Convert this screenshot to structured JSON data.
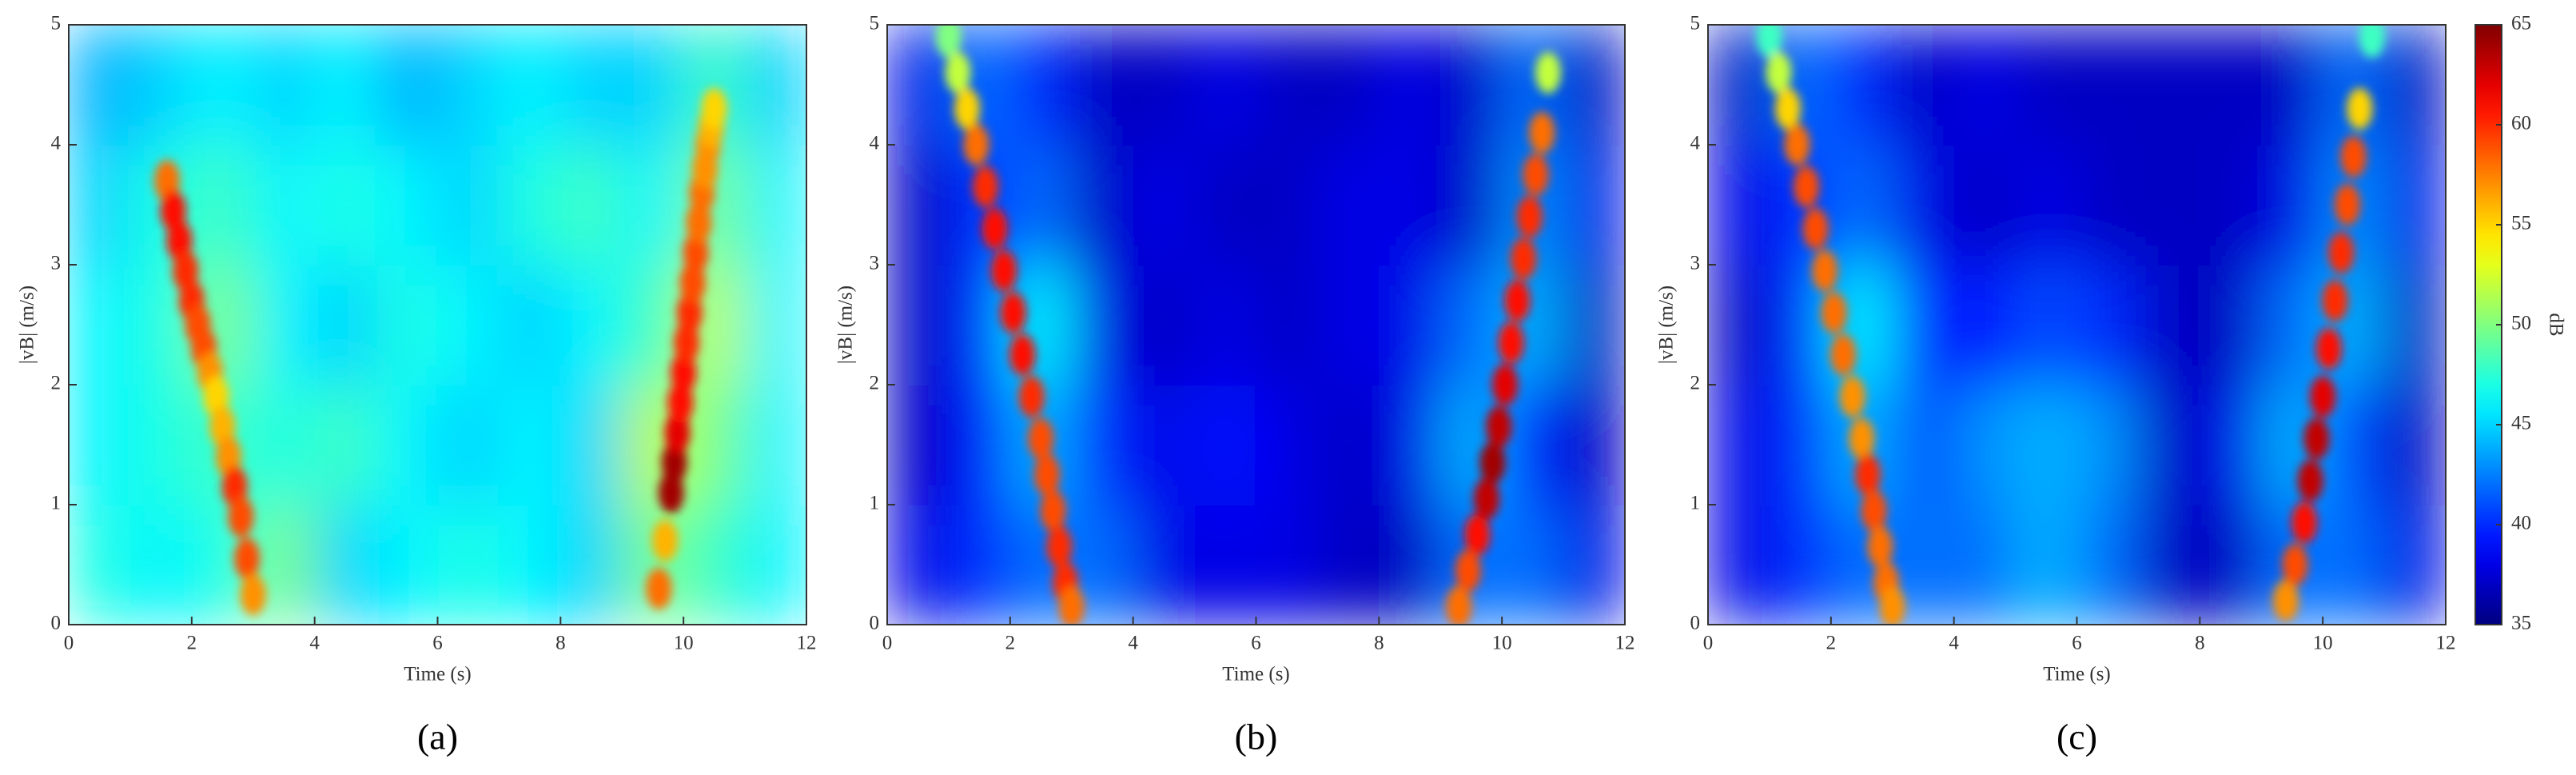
{
  "chart_data": [
    {
      "type": "heatmap",
      "xlabel": "Time (s)",
      "ylabel": "|vB| (m/s)",
      "caption": "(a)",
      "xlim": [
        0,
        12
      ],
      "xticks": [
        0,
        2,
        4,
        6,
        8,
        10,
        12
      ],
      "ylim": [
        0,
        5
      ],
      "yticks": [
        0,
        1,
        2,
        3,
        4,
        5
      ],
      "clim": [
        35,
        65
      ],
      "z": [
        [
          47,
          46,
          47,
          50,
          45,
          46,
          47,
          46,
          45,
          50,
          48,
          46
        ],
        [
          46,
          47,
          48,
          47,
          48,
          46,
          45,
          46,
          45,
          52,
          50,
          46
        ],
        [
          46,
          47,
          50,
          46,
          45,
          47,
          46,
          45,
          46,
          48,
          52,
          46
        ],
        [
          45,
          47,
          48,
          46,
          47,
          46,
          45,
          47,
          48,
          46,
          50,
          46
        ],
        [
          44,
          45,
          46,
          45,
          46,
          44,
          45,
          46,
          45,
          45,
          48,
          45
        ]
      ],
      "ridges": [
        {
          "x": [
            1.6,
            1.7,
            1.8,
            1.9,
            2.0,
            2.1,
            2.2,
            2.3,
            2.4,
            2.5,
            2.6,
            2.7,
            2.8,
            2.9,
            3.0
          ],
          "y": [
            3.7,
            3.45,
            3.2,
            2.95,
            2.7,
            2.5,
            2.3,
            2.1,
            1.9,
            1.65,
            1.4,
            1.15,
            0.9,
            0.55,
            0.25
          ],
          "values": [
            58,
            61,
            61,
            60,
            60,
            59,
            59,
            57,
            55,
            56,
            57,
            60,
            59,
            59,
            57
          ]
        },
        {
          "x": [
            9.6,
            9.7,
            9.8,
            9.85,
            9.9,
            9.95,
            10.0,
            10.05,
            10.1,
            10.15,
            10.2,
            10.25,
            10.3,
            10.35,
            10.4,
            10.45,
            10.5
          ],
          "y": [
            0.3,
            0.7,
            1.1,
            1.35,
            1.6,
            1.85,
            2.1,
            2.35,
            2.6,
            2.85,
            3.1,
            3.35,
            3.6,
            3.8,
            4.0,
            4.15,
            4.3
          ],
          "values": [
            58,
            56,
            64,
            64,
            62,
            61,
            61,
            60,
            60,
            59,
            59,
            58,
            58,
            57,
            57,
            56,
            55
          ]
        }
      ]
    },
    {
      "type": "heatmap",
      "xlabel": "Time (s)",
      "ylabel": "|vB| (m/s)",
      "caption": "(b)",
      "xlim": [
        0,
        12
      ],
      "xticks": [
        0,
        2,
        4,
        6,
        8,
        10,
        12
      ],
      "ylim": [
        0,
        5
      ],
      "yticks": [
        0,
        1,
        2,
        3,
        4,
        5
      ],
      "clim": [
        35,
        65
      ],
      "z": [
        [
          38,
          40,
          42,
          42,
          38,
          38,
          38,
          37,
          37,
          42,
          42,
          38
        ],
        [
          37,
          39,
          44,
          40,
          38,
          39,
          38,
          37,
          38,
          44,
          40,
          37
        ],
        [
          37,
          40,
          46,
          38,
          37,
          38,
          37,
          38,
          38,
          42,
          44,
          37
        ],
        [
          37,
          40,
          42,
          37,
          38,
          37,
          37,
          38,
          38,
          37,
          43,
          38
        ],
        [
          38,
          42,
          40,
          37,
          37,
          38,
          37,
          37,
          38,
          37,
          42,
          37
        ]
      ],
      "ridges": [
        {
          "x": [
            1.0,
            1.15,
            1.3,
            1.45,
            1.6,
            1.75,
            1.9,
            2.05,
            2.2,
            2.35,
            2.5,
            2.6,
            2.7,
            2.8,
            2.9,
            3.0
          ],
          "y": [
            4.9,
            4.6,
            4.3,
            4.0,
            3.65,
            3.3,
            2.95,
            2.6,
            2.25,
            1.9,
            1.55,
            1.25,
            0.95,
            0.65,
            0.35,
            0.15
          ],
          "values": [
            50,
            52,
            55,
            58,
            60,
            61,
            61,
            61,
            61,
            60,
            59,
            59,
            59,
            60,
            60,
            58
          ]
        },
        {
          "x": [
            9.3,
            9.45,
            9.6,
            9.75,
            9.85,
            9.95,
            10.05,
            10.15,
            10.25,
            10.35,
            10.45,
            10.55,
            10.65,
            10.75
          ],
          "y": [
            0.15,
            0.45,
            0.75,
            1.05,
            1.35,
            1.65,
            2.0,
            2.35,
            2.7,
            3.05,
            3.4,
            3.75,
            4.1,
            4.6
          ],
          "values": [
            58,
            59,
            61,
            63,
            64,
            63,
            62,
            61,
            61,
            60,
            60,
            59,
            58,
            52
          ]
        }
      ]
    },
    {
      "type": "heatmap",
      "xlabel": "Time (s)",
      "ylabel": "|vB| (m/s)",
      "caption": "(c)",
      "xlim": [
        0,
        12
      ],
      "xticks": [
        0,
        2,
        4,
        6,
        8,
        10,
        12
      ],
      "ylim": [
        0,
        5
      ],
      "yticks": [
        0,
        1,
        2,
        3,
        4,
        5
      ],
      "clim": [
        35,
        65
      ],
      "z": [
        [
          38,
          40,
          42,
          42,
          42,
          44,
          42,
          37,
          37,
          42,
          42,
          38
        ],
        [
          38,
          40,
          44,
          41,
          43,
          44,
          43,
          37,
          38,
          44,
          41,
          37
        ],
        [
          37,
          40,
          46,
          40,
          39,
          41,
          40,
          37,
          37,
          42,
          44,
          37
        ],
        [
          38,
          40,
          42,
          38,
          37,
          38,
          37,
          37,
          37,
          38,
          43,
          38
        ],
        [
          37,
          42,
          40,
          37,
          38,
          37,
          37,
          37,
          37,
          37,
          42,
          37
        ]
      ],
      "ridges": [
        {
          "x": [
            1.0,
            1.15,
            1.3,
            1.45,
            1.6,
            1.75,
            1.9,
            2.05,
            2.2,
            2.35,
            2.5,
            2.6,
            2.7,
            2.8,
            2.9,
            3.0
          ],
          "y": [
            4.9,
            4.6,
            4.3,
            4.0,
            3.65,
            3.3,
            2.95,
            2.6,
            2.25,
            1.9,
            1.55,
            1.25,
            0.95,
            0.65,
            0.35,
            0.15
          ],
          "values": [
            48,
            52,
            55,
            58,
            59,
            59,
            58,
            58,
            58,
            57,
            57,
            60,
            59,
            58,
            58,
            57
          ]
        },
        {
          "x": [
            9.4,
            9.55,
            9.7,
            9.8,
            9.9,
            10.0,
            10.1,
            10.2,
            10.3,
            10.4,
            10.5,
            10.6,
            10.8
          ],
          "y": [
            0.2,
            0.5,
            0.85,
            1.2,
            1.55,
            1.9,
            2.3,
            2.7,
            3.1,
            3.5,
            3.9,
            4.3,
            4.9
          ],
          "values": [
            57,
            59,
            61,
            63,
            63,
            62,
            61,
            60,
            60,
            59,
            59,
            55,
            48
          ]
        }
      ],
      "colorbar": {
        "label": "dB",
        "ticks": [
          35,
          40,
          45,
          50,
          55,
          60,
          65
        ]
      }
    }
  ]
}
